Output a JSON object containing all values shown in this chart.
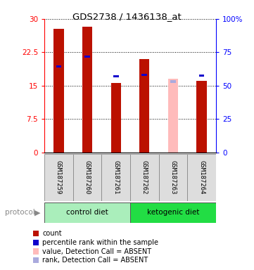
{
  "title": "GDS2738 / 1436138_at",
  "samples": [
    "GSM187259",
    "GSM187260",
    "GSM187261",
    "GSM187262",
    "GSM187263",
    "GSM187264"
  ],
  "count_values": [
    27.8,
    28.2,
    15.6,
    21.0,
    16.5,
    16.1
  ],
  "percentile_values": [
    19.3,
    21.5,
    17.1,
    17.4,
    15.9,
    17.3
  ],
  "absent_value": [
    0,
    0,
    0,
    0,
    16.5,
    0
  ],
  "absent_rank": [
    0,
    0,
    0,
    0,
    15.9,
    0
  ],
  "detection_absent": [
    false,
    false,
    false,
    false,
    true,
    false
  ],
  "ylim_left": [
    0,
    30
  ],
  "ylim_right": [
    0,
    100
  ],
  "yticks_left": [
    0,
    7.5,
    15,
    22.5,
    30
  ],
  "yticks_right": [
    0,
    25,
    50,
    75,
    100
  ],
  "ytick_labels_right": [
    "0",
    "25",
    "50",
    "75",
    "100%"
  ],
  "bar_width": 0.35,
  "bar_color_normal": "#BB1100",
  "bar_color_absent": "#FFBBBB",
  "percentile_color_normal": "#1100CC",
  "percentile_color_absent": "#AAAADD",
  "legend_items": [
    {
      "color": "#BB1100",
      "label": "count"
    },
    {
      "color": "#1100CC",
      "label": "percentile rank within the sample"
    },
    {
      "color": "#FFBBBB",
      "label": "value, Detection Call = ABSENT"
    },
    {
      "color": "#AAAADD",
      "label": "rank, Detection Call = ABSENT"
    }
  ],
  "control_color": "#AAEEBB",
  "ketogenic_color": "#22DD44"
}
